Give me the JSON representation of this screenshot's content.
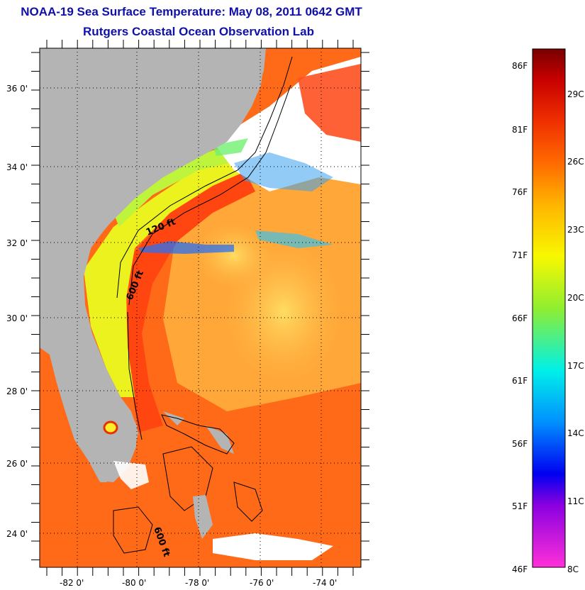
{
  "header": {
    "title": "NOAA-19 Sea Surface Temperature:  May 08, 2011 0642 GMT",
    "subtitle": "Rutgers Coastal Ocean Observation Lab"
  },
  "map": {
    "lat_labels": [
      "36 0'",
      "34 0'",
      "32 0'",
      "30 0'",
      "28 0'",
      "26 0'",
      "24 0'"
    ],
    "lon_labels": [
      "-82 0'",
      "-80 0'",
      "-78 0'",
      "-76 0'",
      "-74 0'"
    ],
    "contour_labels": [
      "120 ft",
      "600 ft",
      "600 ft"
    ],
    "colors": {
      "land": "#b4b4b4",
      "warm": "#ff5a14",
      "gulfstream": "#ff4a10",
      "shelf": "#e6f21e",
      "cloud": "#ffffff"
    }
  },
  "colorbar": {
    "fahrenheit": [
      "86F",
      "81F",
      "76F",
      "71F",
      "66F",
      "61F",
      "56F",
      "51F",
      "46F"
    ],
    "celsius": [
      "29C",
      "26C",
      "23C",
      "20C",
      "17C",
      "14C",
      "11C",
      "8C"
    ]
  }
}
